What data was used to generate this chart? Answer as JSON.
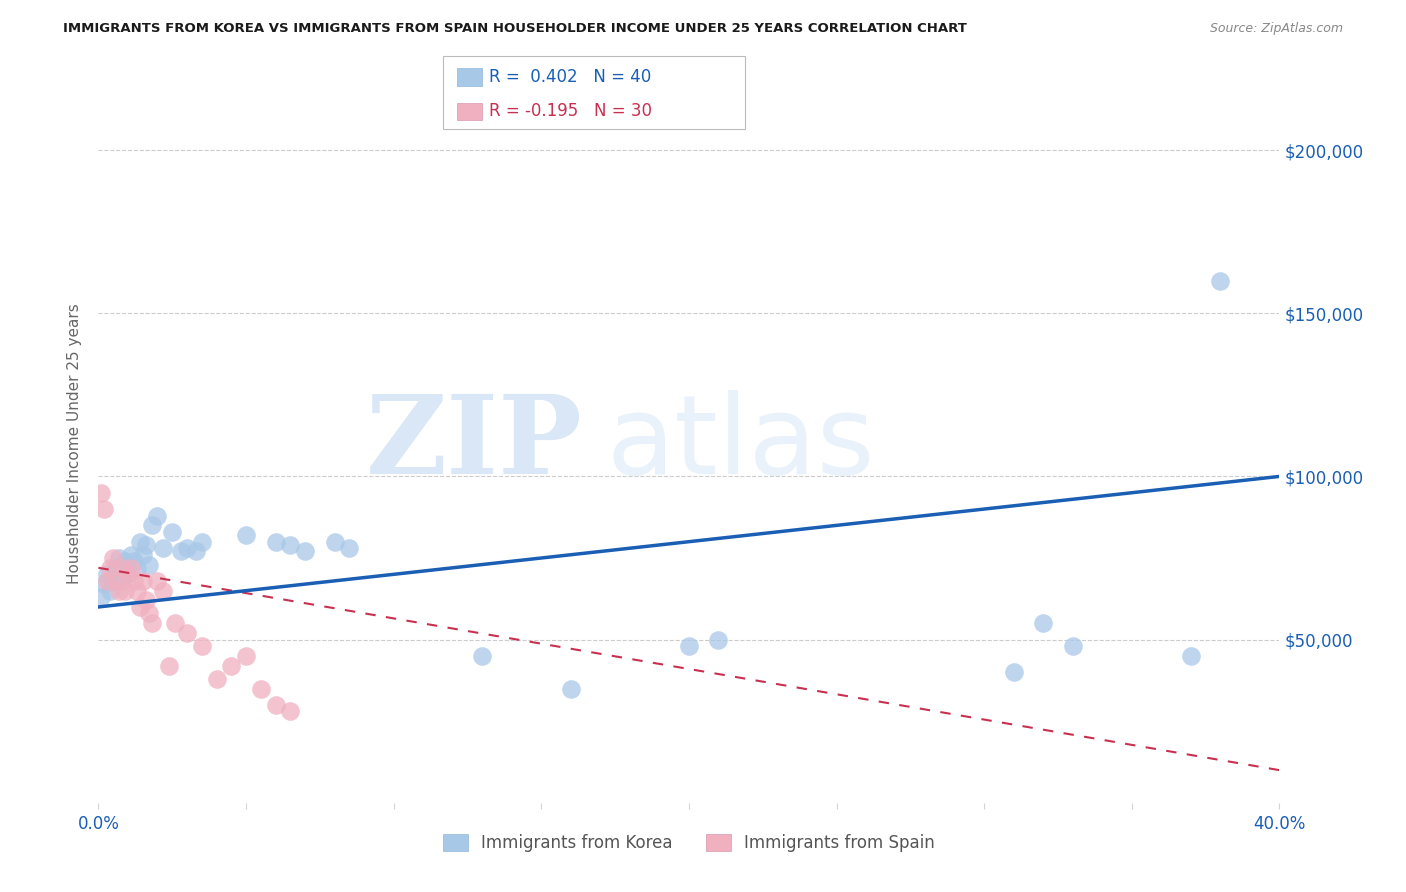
{
  "title": "IMMIGRANTS FROM KOREA VS IMMIGRANTS FROM SPAIN HOUSEHOLDER INCOME UNDER 25 YEARS CORRELATION CHART",
  "source": "Source: ZipAtlas.com",
  "ylabel_label": "Householder Income Under 25 years",
  "xlim": [
    0.0,
    0.4
  ],
  "ylim": [
    0,
    220000
  ],
  "xticks": [
    0.0,
    0.05,
    0.1,
    0.15,
    0.2,
    0.25,
    0.3,
    0.35,
    0.4
  ],
  "ytick_positions": [
    50000,
    100000,
    150000,
    200000
  ],
  "ytick_labels": [
    "$50,000",
    "$100,000",
    "$150,000",
    "$200,000"
  ],
  "korea_R": 0.402,
  "korea_N": 40,
  "spain_R": -0.195,
  "spain_N": 30,
  "korea_color": "#a8c8e8",
  "korea_line_color": "#1a5fb4",
  "spain_color": "#f0b0c0",
  "spain_line_color": "#c83050",
  "korea_scatter_x": [
    0.001,
    0.002,
    0.003,
    0.004,
    0.005,
    0.006,
    0.007,
    0.008,
    0.009,
    0.01,
    0.011,
    0.012,
    0.013,
    0.014,
    0.015,
    0.016,
    0.017,
    0.018,
    0.02,
    0.022,
    0.025,
    0.028,
    0.03,
    0.033,
    0.035,
    0.05,
    0.06,
    0.065,
    0.07,
    0.08,
    0.085,
    0.13,
    0.16,
    0.2,
    0.21,
    0.31,
    0.32,
    0.33,
    0.37,
    0.38
  ],
  "korea_scatter_y": [
    63000,
    67000,
    70000,
    65000,
    68000,
    72000,
    75000,
    68000,
    74000,
    70000,
    76000,
    74000,
    72000,
    80000,
    76000,
    79000,
    73000,
    85000,
    88000,
    78000,
    83000,
    77000,
    78000,
    77000,
    80000,
    82000,
    80000,
    79000,
    77000,
    80000,
    78000,
    45000,
    35000,
    48000,
    50000,
    40000,
    55000,
    48000,
    45000,
    160000
  ],
  "spain_scatter_x": [
    0.001,
    0.002,
    0.003,
    0.004,
    0.005,
    0.006,
    0.007,
    0.008,
    0.009,
    0.01,
    0.011,
    0.012,
    0.013,
    0.014,
    0.015,
    0.016,
    0.017,
    0.018,
    0.02,
    0.022,
    0.024,
    0.026,
    0.03,
    0.035,
    0.04,
    0.045,
    0.05,
    0.055,
    0.06,
    0.065
  ],
  "spain_scatter_y": [
    95000,
    90000,
    68000,
    72000,
    75000,
    68000,
    65000,
    72000,
    65000,
    70000,
    72000,
    68000,
    65000,
    60000,
    68000,
    62000,
    58000,
    55000,
    68000,
    65000,
    42000,
    55000,
    52000,
    48000,
    38000,
    42000,
    45000,
    35000,
    30000,
    28000
  ],
  "korea_line_x0": 0.0,
  "korea_line_y0": 60000,
  "korea_line_x1": 0.4,
  "korea_line_y1": 100000,
  "spain_line_x0": 0.0,
  "spain_line_y0": 72000,
  "spain_line_x1": 0.4,
  "spain_line_y1": 10000
}
